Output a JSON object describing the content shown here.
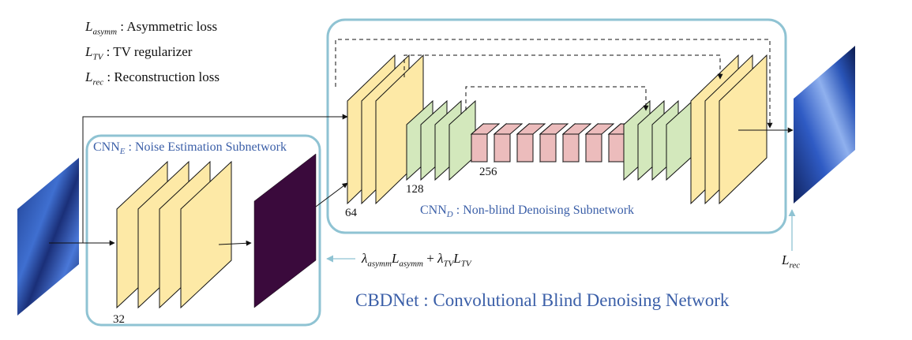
{
  "legend": {
    "asymm": {
      "symbol": "L",
      "sub": "asymm",
      "desc": ": Asymmetric loss"
    },
    "tv": {
      "symbol": "L",
      "sub": "TV",
      "desc": ": TV regularizer"
    },
    "rec": {
      "symbol": "L",
      "sub": "rec",
      "desc": ": Reconstruction loss"
    }
  },
  "cnn_e": {
    "name": "CNN",
    "sub": "E",
    "desc": ": Noise Estimation Subnetwork",
    "channels": "32"
  },
  "cnn_d": {
    "name": "CNN",
    "sub": "D",
    "desc": ": Non-blind Denoising Subnetwork",
    "channels": [
      "64",
      "128",
      "256"
    ]
  },
  "loss_equation": {
    "lambda1_sub": "asymm",
    "l1_sub": "asymm",
    "plus": "+",
    "lambda2_sub": "TV",
    "l2_sub": "TV"
  },
  "rec_label": {
    "symbol": "L",
    "sub": "rec"
  },
  "title": "CBDNet : Convolutional Blind Denoising Network",
  "colors": {
    "frame": "#8fc3d3",
    "yellow": "#fde9a6",
    "green": "#d3e8bc",
    "red": "#ecbcbc",
    "noise_map": "#3a0a3c",
    "title": "#3b5fa8"
  }
}
